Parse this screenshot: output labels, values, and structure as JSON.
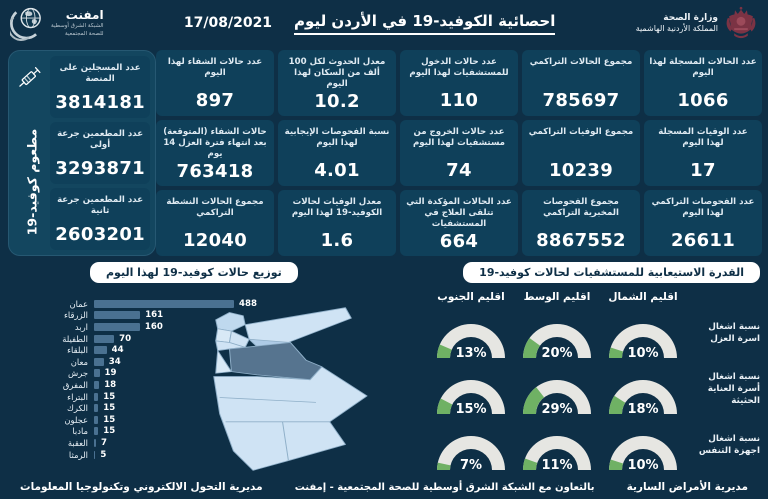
{
  "header": {
    "title": "احصائية الكوفيد-19 في الأردن ليوم",
    "date": "17/08/2021",
    "ministry_line1": "وزارة الصحة",
    "ministry_line2": "المملكة الأردنية الهاشمية",
    "emphnet_name": "امفنت",
    "emphnet_tag1": "الشبكة الشرق أوسطية",
    "emphnet_tag2": "للصحة المجتمعية"
  },
  "stats": {
    "columns": [
      [
        {
          "label": "عدد الحالات المسجلة لهذا اليوم",
          "value": "1066"
        },
        {
          "label": "عدد الوفيات المسجلة لهذا اليوم",
          "value": "17"
        },
        {
          "label": "عدد الفحوصات التراكمي لهذا اليوم",
          "value": "26611"
        }
      ],
      [
        {
          "label": "مجموع الحالات التراكمي",
          "value": "785697"
        },
        {
          "label": "مجموع الوفيات التراكمي",
          "value": "10239"
        },
        {
          "label": "مجموع الفحوصات المخبرية التراكمي",
          "value": "8867552"
        }
      ],
      [
        {
          "label": "عدد حالات الدخول للمستشفيات لهذا اليوم",
          "value": "110"
        },
        {
          "label": "عدد حالات الخروج من مستشفيات لهذا اليوم",
          "value": "74"
        },
        {
          "label": "عدد الحالات المؤكدة التي تتلقى العلاج في المستشفيات",
          "value": "664"
        }
      ],
      [
        {
          "label": "معدل الحدوث لكل 100 ألف من السكان لهذا اليوم",
          "value": "10.2"
        },
        {
          "label": "نسبة الفحوصات الإيجابية لهذا اليوم",
          "value": "4.01"
        },
        {
          "label": "معدل الوفيات لحالات الكوفيد-19 لهذا اليوم",
          "value": "1.6"
        }
      ],
      [
        {
          "label": "عدد حالات الشفاء لهذا اليوم",
          "value": "897"
        },
        {
          "label": "حالات الشفاء (المتوقعة) بعد انتهاء فترة العزل 14 يوم",
          "value": "763418"
        },
        {
          "label": "مجموع الحالات النشطة التراكمي",
          "value": "12040"
        }
      ]
    ]
  },
  "vaccine": {
    "vertical_label": "مطعوم كوفيد-19",
    "cards": [
      {
        "label": "عدد المسجلين على المنصة",
        "value": "3814181"
      },
      {
        "label": "عدد المطعمين جرعة أولى",
        "value": "3293871"
      },
      {
        "label": "عدد المطعمين جرعة ثانية",
        "value": "2603201"
      }
    ]
  },
  "chart_data": [
    {
      "type": "bar",
      "orientation": "horizontal",
      "title": "توزيع حالات كوفيد-19 لهذا اليوم",
      "categories": [
        "عمان",
        "الزرقاء",
        "اربد",
        "الطفيلة",
        "البلقاء",
        "معان",
        "جرش",
        "المفرق",
        "البتراء",
        "الكرك",
        "عجلون",
        "مادبا",
        "العقبة",
        "الرمثا"
      ],
      "values": [
        488,
        161,
        160,
        70,
        44,
        34,
        19,
        18,
        15,
        15,
        15,
        15,
        7,
        5
      ],
      "xlim": [
        0,
        488
      ],
      "legend": "none",
      "grid": false
    },
    {
      "type": "gauge-grid",
      "title": "القدرة الاستيعابية للمستشفيات لحالات كوفيد-19",
      "columns": [
        "اقليم الشمال",
        "اقليم الوسط",
        "اقليم الجنوب"
      ],
      "rows": [
        {
          "label": "نسبة اشغال اسرة العزل",
          "values": [
            10,
            20,
            13
          ]
        },
        {
          "label": "نسبة اشغال أسرة العناية الحثيثة",
          "values": [
            18,
            29,
            15
          ]
        },
        {
          "label": "نسبة اشغال اجهزة التنفس",
          "values": [
            10,
            11,
            7
          ]
        }
      ],
      "unit": "%",
      "range": [
        0,
        100
      ]
    }
  ],
  "footer": {
    "right": "مديرية الأمراض السارية",
    "center": "بالتعاون مع الشبكة الشرق أوسطية للصحة المجتمعية - إمفنت",
    "left": "مديرية التحول الالكتروني وتكنولوجيا المعلومات"
  },
  "colors": {
    "background": "#0e2f46",
    "card": "#0f405a",
    "panel": "#13465f",
    "bar": "#4a7191",
    "gauge_fill": "#6fb164",
    "gauge_track": "#e6e6e2",
    "pill_bg": "#ffffff",
    "pill_text": "#0e2f46",
    "map_light": "#cfe3f4",
    "map_medium": "#aecbe6",
    "map_dark": "#56748f",
    "crest_maroon": "#7b3344"
  }
}
